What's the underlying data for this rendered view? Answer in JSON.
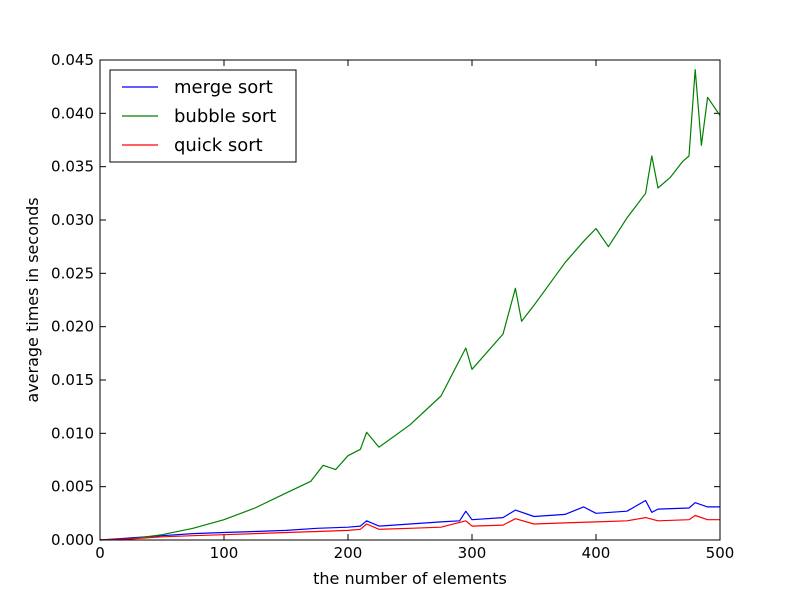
{
  "chart_data": {
    "type": "line",
    "title": "",
    "xlabel": "the number of elements",
    "ylabel": "average times in seconds",
    "xlim": [
      0,
      500
    ],
    "ylim": [
      0,
      0.045
    ],
    "xticks": [
      0,
      100,
      200,
      300,
      400,
      500
    ],
    "yticks": [
      0.0,
      0.005,
      0.01,
      0.015,
      0.02,
      0.025,
      0.03,
      0.035,
      0.04,
      0.045
    ],
    "xtick_labels": [
      "0",
      "100",
      "200",
      "300",
      "400",
      "500"
    ],
    "ytick_labels": [
      "0.000",
      "0.005",
      "0.010",
      "0.015",
      "0.020",
      "0.025",
      "0.030",
      "0.035",
      "0.040",
      "0.045"
    ],
    "grid": false,
    "legend_position": "top-left",
    "series": [
      {
        "name": "merge sort",
        "color": "#0000ff",
        "x": [
          0,
          25,
          50,
          75,
          100,
          125,
          150,
          175,
          200,
          210,
          215,
          225,
          250,
          275,
          290,
          295,
          300,
          325,
          335,
          350,
          375,
          390,
          400,
          425,
          440,
          445,
          450,
          475,
          480,
          490,
          500
        ],
        "y": [
          0,
          0.0002,
          0.0004,
          0.0006,
          0.0007,
          0.0008,
          0.0009,
          0.0011,
          0.0012,
          0.0013,
          0.0018,
          0.0013,
          0.0015,
          0.0017,
          0.0018,
          0.0027,
          0.0019,
          0.0021,
          0.0028,
          0.0022,
          0.0024,
          0.0031,
          0.0025,
          0.0027,
          0.0037,
          0.0026,
          0.0029,
          0.003,
          0.0035,
          0.0031,
          0.0031
        ]
      },
      {
        "name": "bubble sort",
        "color": "#008000",
        "x": [
          0,
          25,
          50,
          75,
          100,
          125,
          150,
          170,
          180,
          190,
          200,
          210,
          215,
          225,
          250,
          275,
          295,
          300,
          325,
          335,
          340,
          350,
          375,
          390,
          400,
          410,
          425,
          440,
          445,
          450,
          460,
          470,
          475,
          480,
          485,
          490,
          500
        ],
        "y": [
          0,
          0.0001,
          0.0005,
          0.0011,
          0.0019,
          0.003,
          0.0044,
          0.0055,
          0.007,
          0.0066,
          0.0079,
          0.0085,
          0.0101,
          0.0087,
          0.0108,
          0.0135,
          0.018,
          0.016,
          0.0193,
          0.0236,
          0.0205,
          0.022,
          0.026,
          0.028,
          0.0292,
          0.0275,
          0.0302,
          0.0325,
          0.036,
          0.033,
          0.034,
          0.0355,
          0.036,
          0.0441,
          0.037,
          0.0415,
          0.0398
        ]
      },
      {
        "name": "quick sort",
        "color": "#ff0000",
        "x": [
          0,
          25,
          50,
          75,
          100,
          125,
          150,
          175,
          200,
          210,
          215,
          225,
          250,
          275,
          295,
          300,
          325,
          335,
          350,
          375,
          400,
          425,
          440,
          450,
          475,
          480,
          490,
          500
        ],
        "y": [
          0,
          0.0001,
          0.0003,
          0.0004,
          0.0005,
          0.0006,
          0.0007,
          0.0008,
          0.0009,
          0.001,
          0.0015,
          0.001,
          0.0011,
          0.0012,
          0.0018,
          0.0013,
          0.0014,
          0.002,
          0.0015,
          0.0016,
          0.0017,
          0.0018,
          0.0021,
          0.0018,
          0.0019,
          0.0023,
          0.0019,
          0.0019
        ]
      }
    ]
  }
}
